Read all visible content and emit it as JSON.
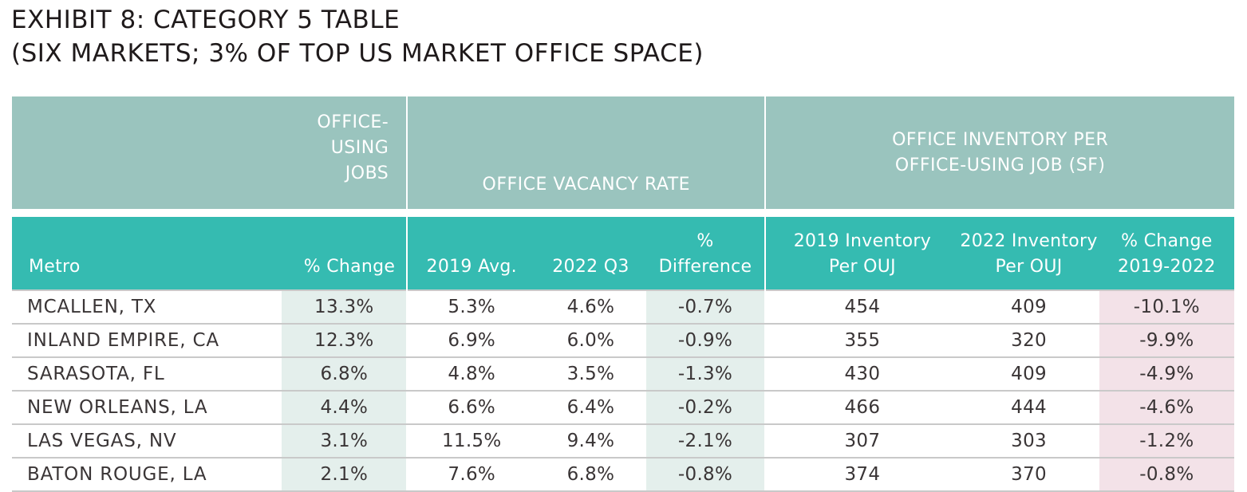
{
  "title": {
    "line1": "EXHIBIT 8: CATEGORY 5 TABLE",
    "line2": "(SIX MARKETS; 3% OF TOP US MARKET OFFICE SPACE)"
  },
  "group_headers": {
    "jobs": [
      "OFFICE-",
      "USING",
      "JOBS"
    ],
    "vacancy": "OFFICE VACANCY RATE",
    "inventory": [
      "OFFICE INVENTORY PER",
      "OFFICE-USING JOB (SF)"
    ]
  },
  "columns": {
    "metro": "Metro",
    "jobs_change": "% Change",
    "vac_2019": "2019 Avg.",
    "vac_2022": "2022 Q3",
    "vac_diff": [
      "%",
      "Difference"
    ],
    "inv_2019": [
      "2019 Inventory",
      "Per OUJ"
    ],
    "inv_2022": [
      "2022 Inventory",
      "Per OUJ"
    ],
    "inv_change": [
      "% Change",
      "2019-2022"
    ]
  },
  "rows": [
    {
      "metro": "MCALLEN, TX",
      "jobs_change": "13.3%",
      "vac_2019": "5.3%",
      "vac_2022": "4.6%",
      "vac_diff": "-0.7%",
      "inv_2019": "454",
      "inv_2022": "409",
      "inv_change": "-10.1%"
    },
    {
      "metro": "INLAND EMPIRE, CA",
      "jobs_change": "12.3%",
      "vac_2019": "6.9%",
      "vac_2022": "6.0%",
      "vac_diff": "-0.9%",
      "inv_2019": "355",
      "inv_2022": "320",
      "inv_change": "-9.9%"
    },
    {
      "metro": "SARASOTA, FL",
      "jobs_change": "6.8%",
      "vac_2019": "4.8%",
      "vac_2022": "3.5%",
      "vac_diff": "-1.3%",
      "inv_2019": "430",
      "inv_2022": "409",
      "inv_change": "-4.9%"
    },
    {
      "metro": "NEW ORLEANS, LA",
      "jobs_change": "4.4%",
      "vac_2019": "6.6%",
      "vac_2022": "6.4%",
      "vac_diff": "-0.2%",
      "inv_2019": "466",
      "inv_2022": "444",
      "inv_change": "-4.6%"
    },
    {
      "metro": "LAS VEGAS, NV",
      "jobs_change": "3.1%",
      "vac_2019": "11.5%",
      "vac_2022": "9.4%",
      "vac_diff": "-2.1%",
      "inv_2019": "307",
      "inv_2022": "303",
      "inv_change": "-1.2%"
    },
    {
      "metro": "BATON ROUGE, LA",
      "jobs_change": "2.1%",
      "vac_2019": "7.6%",
      "vac_2022": "6.8%",
      "vac_diff": "-0.8%",
      "inv_2019": "374",
      "inv_2022": "370",
      "inv_change": "-0.8%"
    }
  ],
  "colors": {
    "group_header_bg": "#9ac4be",
    "sub_header_bg": "#35bbb1",
    "highlight_green": "#e4efec",
    "highlight_pink": "#f3e2e8"
  }
}
